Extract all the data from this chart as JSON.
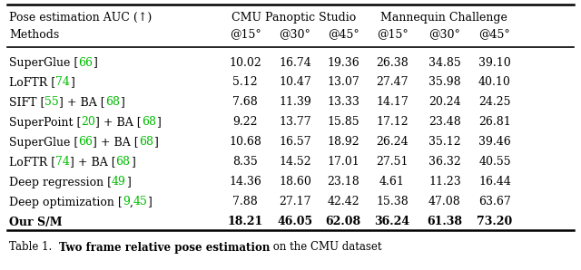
{
  "title_row": "Pose estimation AUC (↑)",
  "cmu_label": "CMU Panoptic Studio",
  "man_label": "Mannequin Challenge",
  "methods_label": "Methods",
  "col_headers": [
    "@15°",
    "@30°",
    "@45°",
    "@15°",
    "@30°",
    "@45°"
  ],
  "rows": [
    {
      "method": [
        [
          "SuperGlue [",
          false
        ],
        [
          "66",
          true
        ],
        [
          "]",
          false
        ]
      ],
      "values": [
        "10.02",
        "16.74",
        "19.36",
        "26.38",
        "34.85",
        "39.10"
      ],
      "bold_vals": false,
      "bold_method": false
    },
    {
      "method": [
        [
          "LoFTR [",
          false
        ],
        [
          "74",
          true
        ],
        [
          "]",
          false
        ]
      ],
      "values": [
        "5.12",
        "10.47",
        "13.07",
        "27.47",
        "35.98",
        "40.10"
      ],
      "bold_vals": false,
      "bold_method": false
    },
    {
      "method": [
        [
          "SIFT [",
          false
        ],
        [
          "55",
          true
        ],
        [
          "] + BA [",
          false
        ],
        [
          "68",
          true
        ],
        [
          "]",
          false
        ]
      ],
      "values": [
        "7.68",
        "11.39",
        "13.33",
        "14.17",
        "20.24",
        "24.25"
      ],
      "bold_vals": false,
      "bold_method": false
    },
    {
      "method": [
        [
          "SuperPoint [",
          false
        ],
        [
          "20",
          true
        ],
        [
          "] + BA [",
          false
        ],
        [
          "68",
          true
        ],
        [
          "]",
          false
        ]
      ],
      "values": [
        "9.22",
        "13.77",
        "15.85",
        "17.12",
        "23.48",
        "26.81"
      ],
      "bold_vals": false,
      "bold_method": false
    },
    {
      "method": [
        [
          "SuperGlue [",
          false
        ],
        [
          "66",
          true
        ],
        [
          "] + BA [",
          false
        ],
        [
          "68",
          true
        ],
        [
          "]",
          false
        ]
      ],
      "values": [
        "10.68",
        "16.57",
        "18.92",
        "26.24",
        "35.12",
        "39.46"
      ],
      "bold_vals": false,
      "bold_method": false
    },
    {
      "method": [
        [
          "LoFTR [",
          false
        ],
        [
          "74",
          true
        ],
        [
          "] + BA [",
          false
        ],
        [
          "68",
          true
        ],
        [
          "]",
          false
        ]
      ],
      "values": [
        "8.35",
        "14.52",
        "17.01",
        "27.51",
        "36.32",
        "40.55"
      ],
      "bold_vals": false,
      "bold_method": false
    },
    {
      "method": [
        [
          "Deep regression [",
          false
        ],
        [
          "49",
          true
        ],
        [
          "]",
          false
        ]
      ],
      "values": [
        "14.36",
        "18.60",
        "23.18",
        "4.61",
        "11.23",
        "16.44"
      ],
      "bold_vals": false,
      "bold_method": false
    },
    {
      "method": [
        [
          "Deep optimization [",
          false
        ],
        [
          "9",
          true
        ],
        [
          ",",
          false
        ],
        [
          "45",
          true
        ],
        [
          "]",
          false
        ]
      ],
      "values": [
        "7.88",
        "27.17",
        "42.42",
        "15.38",
        "47.08",
        "63.67"
      ],
      "bold_vals": false,
      "bold_method": false
    },
    {
      "method": [
        [
          "Our S/M",
          false
        ]
      ],
      "values": [
        "18.21",
        "46.05",
        "62.08",
        "36.24",
        "61.38",
        "73.20"
      ],
      "bold_vals": true,
      "bold_method": true
    }
  ],
  "caption_normal": "Table 1.  ",
  "caption_bold": "Two frame relative pose estimation",
  "caption_normal2": " on the CMU dataset",
  "green_color": "#00BB00",
  "black_color": "#000000",
  "bg_color": "#ffffff",
  "figwidth": 6.4,
  "figheight": 2.98,
  "dpi": 100,
  "fontsize": 9.0,
  "caption_fontsize": 8.5
}
